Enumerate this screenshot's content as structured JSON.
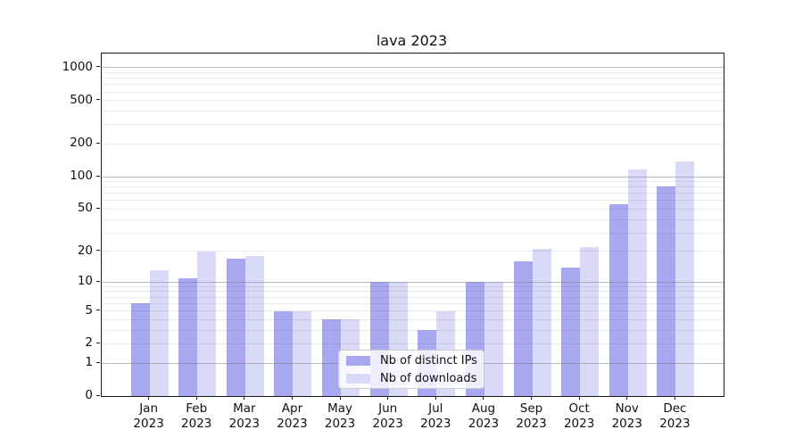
{
  "title": "lava 2023",
  "colors": {
    "ips_bar": "#a8a8f0",
    "downloads_bar": "#d9d9f8",
    "grid_major": "rgba(120,120,120,0.50)",
    "grid_minor": "rgba(0,0,0,0.08)",
    "axis": "#1a1a1a",
    "text": "#111111",
    "legend_border": "#cccccc"
  },
  "legend": {
    "items": [
      {
        "label": "Nb of distinct IPs",
        "color_key": "ips_bar"
      },
      {
        "label": "Nb of downloads",
        "color_key": "downloads_bar"
      }
    ]
  },
  "chart_data": {
    "type": "bar",
    "title": "lava 2023",
    "categories": [
      "Jan 2023",
      "Feb 2023",
      "Mar 2023",
      "Apr 2023",
      "May 2023",
      "Jun 2023",
      "Jul 2023",
      "Aug 2023",
      "Sep 2023",
      "Oct 2023",
      "Nov 2023",
      "Dec 2023"
    ],
    "series": [
      {
        "name": "Nb of distinct IPs",
        "color_key": "ips_bar",
        "values": [
          6,
          11,
          17,
          5,
          4,
          10,
          3,
          10,
          16,
          14,
          56,
          82
        ]
      },
      {
        "name": "Nb of downloads",
        "color_key": "downloads_bar",
        "values": [
          13,
          20,
          18,
          5,
          4,
          10,
          5,
          10,
          21,
          22,
          116,
          139
        ]
      }
    ],
    "xlabel": "",
    "ylabel": "",
    "y_scale": "log10(1+value)",
    "y_ticks": [
      0,
      1,
      2,
      5,
      10,
      20,
      50,
      100,
      200,
      500,
      1000
    ],
    "y_gridlines_major": [
      1,
      10,
      100,
      1000
    ],
    "ylim": [
      0,
      1355
    ],
    "grid": "on",
    "grid_above_bars": true,
    "legend_position": "lower center"
  }
}
